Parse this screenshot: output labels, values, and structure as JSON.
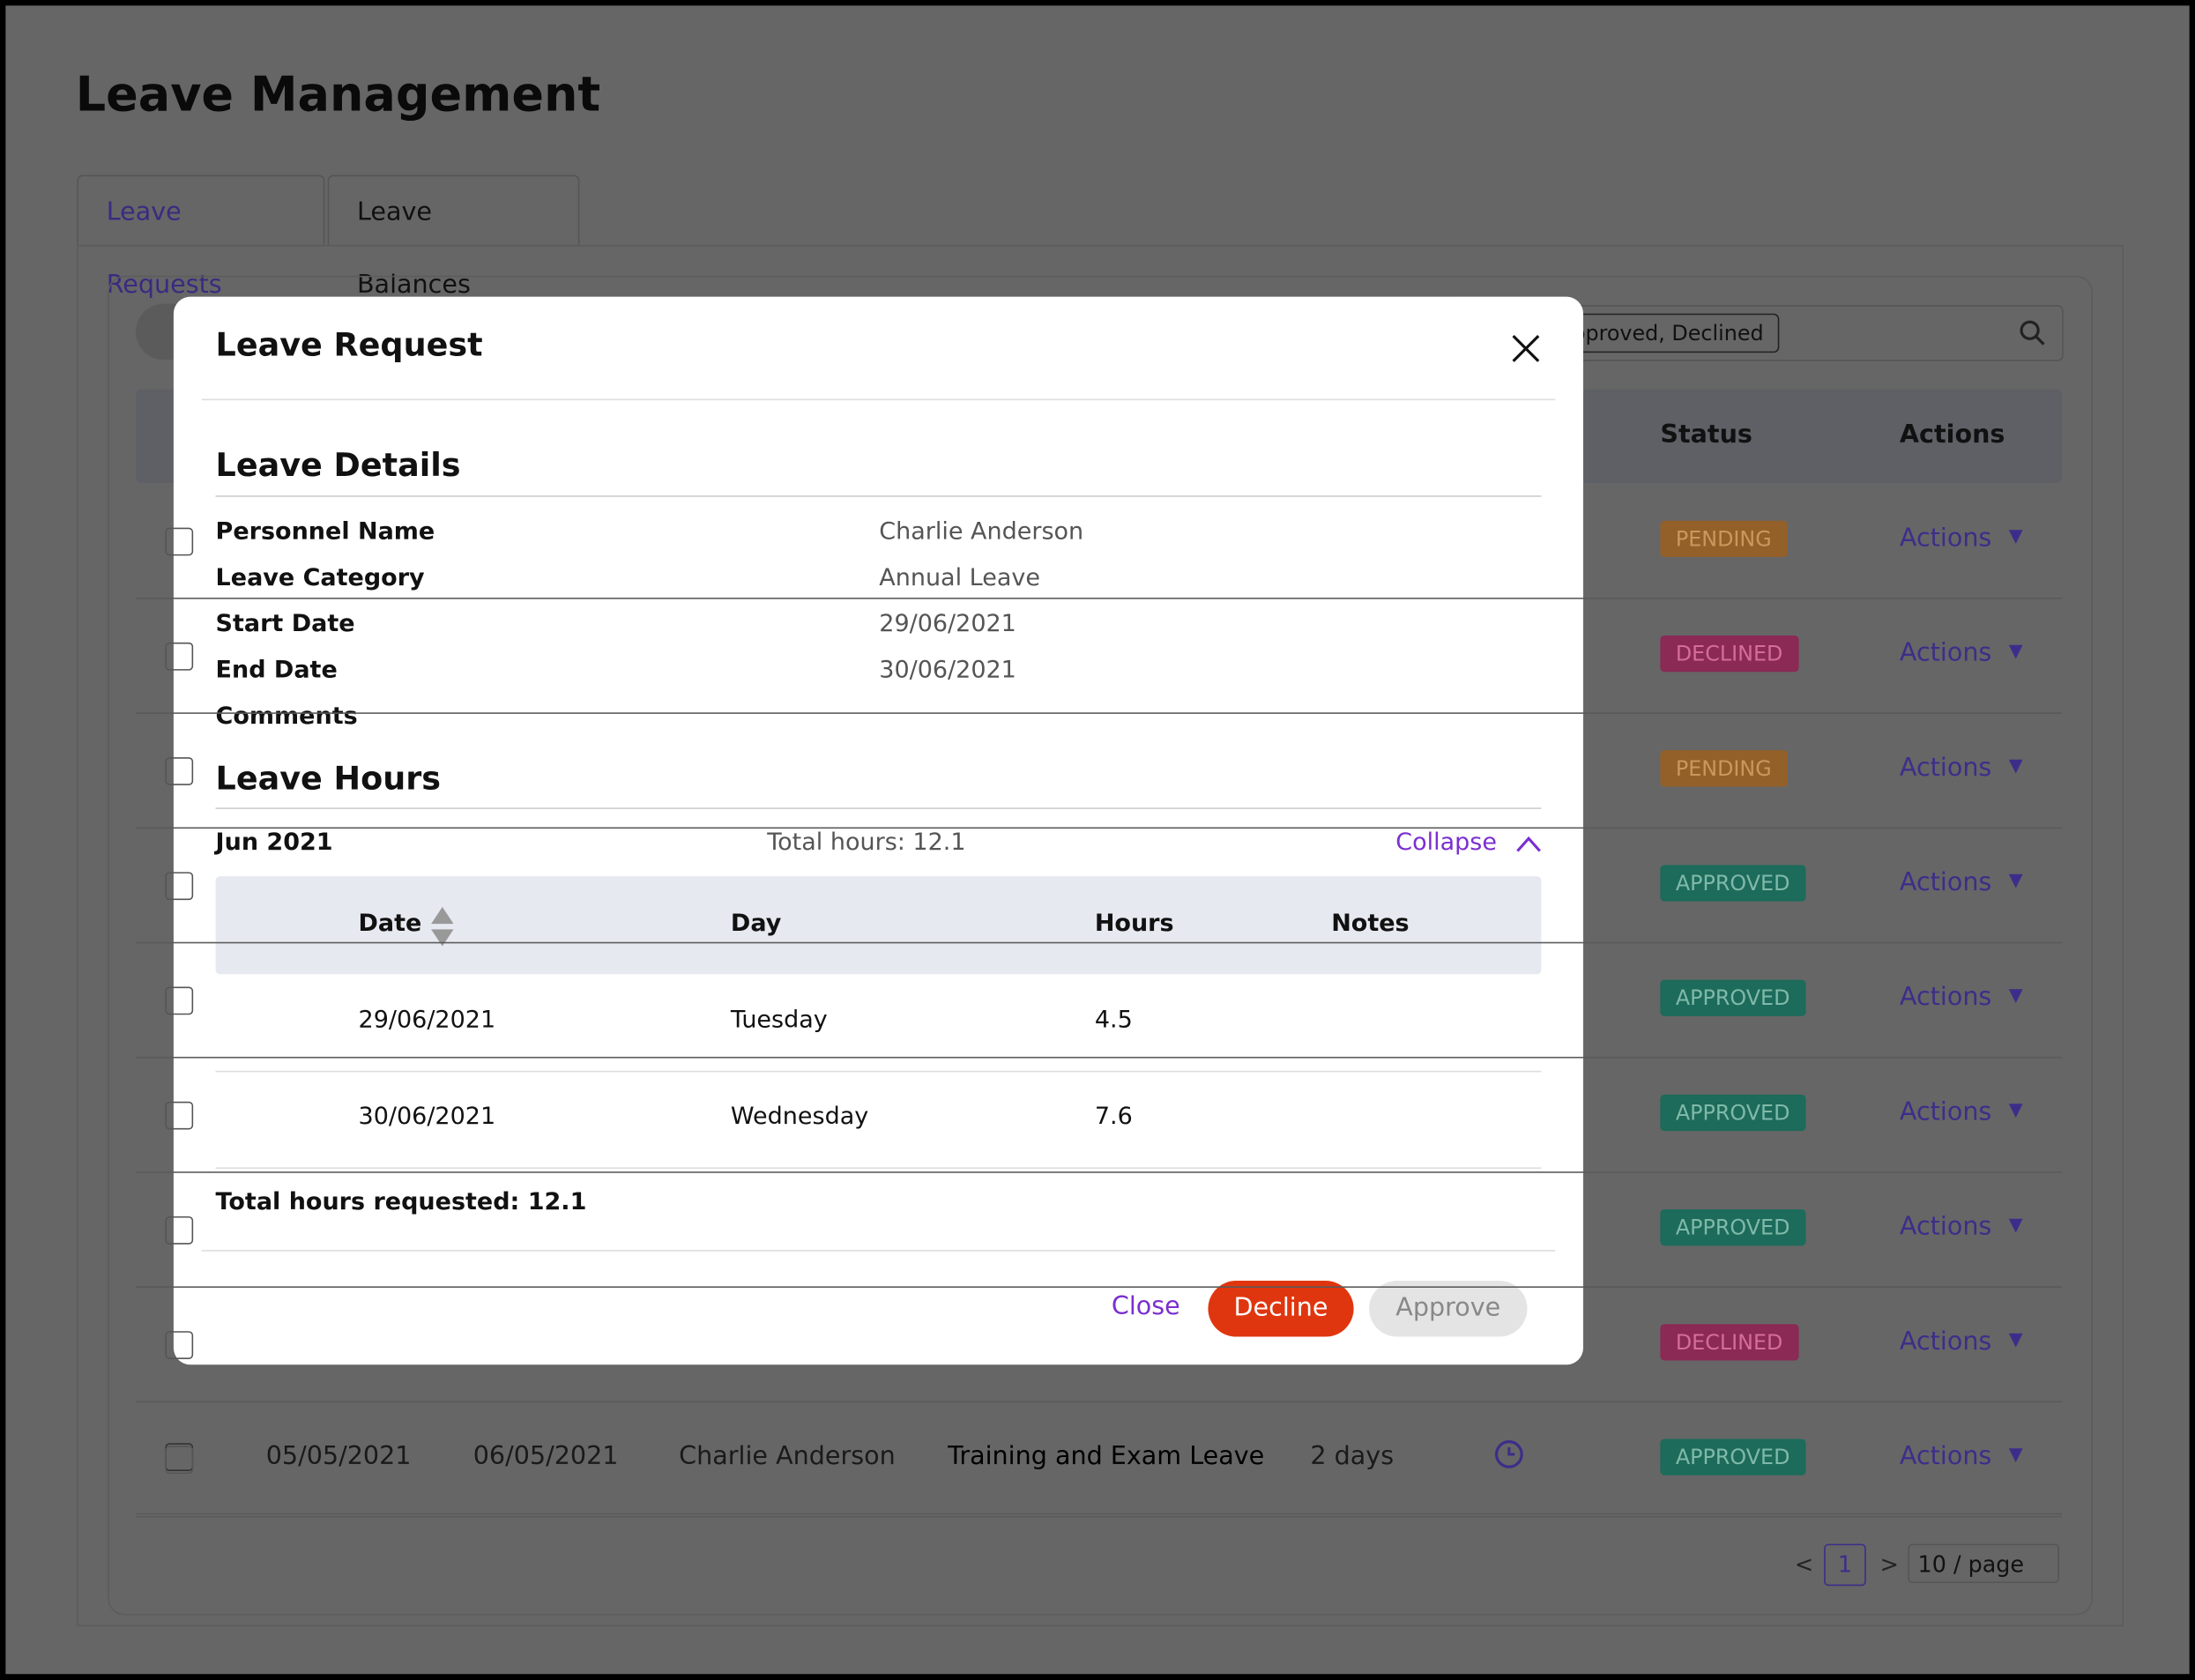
{
  "header": {
    "title": "Leave Management"
  },
  "tabs": [
    "Leave Requests",
    "Leave Balances"
  ],
  "filter": "pproved, Declined",
  "table": {
    "headers": [
      "Status",
      "Actions"
    ],
    "rows": [
      {
        "status": "PENDING",
        "action": "Actions"
      },
      {
        "status": "DECLINED",
        "action": "Actions"
      },
      {
        "status": "PENDING",
        "action": "Actions"
      },
      {
        "status": "APPROVED",
        "action": "Actions"
      },
      {
        "status": "APPROVED",
        "action": "Actions"
      },
      {
        "status": "APPROVED",
        "action": "Actions"
      },
      {
        "status": "APPROVED",
        "action": "Actions"
      },
      {
        "status": "DECLINED",
        "action": "Actions"
      },
      {
        "status": "APPROVED",
        "action": "Actions"
      }
    ],
    "last_row": [
      "05/05/2021",
      "06/05/2021",
      "Charlie Anderson",
      "Training and Exam Leave",
      "2 days"
    ]
  },
  "pagination": {
    "page": "1",
    "page_size": "10 / page"
  },
  "modal": {
    "title": "Leave Request",
    "details_heading": "Leave Details",
    "fields": [
      {
        "label": "Personnel Name",
        "value": "Charlie Anderson"
      },
      {
        "label": "Leave Category",
        "value": "Annual Leave"
      },
      {
        "label": "Start Date",
        "value": "29/06/2021"
      },
      {
        "label": "End Date",
        "value": "30/06/2021"
      },
      {
        "label": "Comments",
        "value": ""
      }
    ],
    "hours_heading": "Leave Hours",
    "month": "Jun 2021",
    "month_total": "Total hours: 12.1",
    "collapse": "Collapse",
    "hours_table": {
      "headers": [
        "Date",
        "Day",
        "Hours",
        "Notes"
      ],
      "rows": [
        [
          "29/06/2021",
          "Tuesday",
          "4.5"
        ],
        [
          "30/06/2021",
          "Wednesday",
          "7.6"
        ]
      ]
    },
    "total": "Total hours requested: 12.1",
    "buttons": [
      "Close",
      "Decline",
      "Approve"
    ]
  }
}
